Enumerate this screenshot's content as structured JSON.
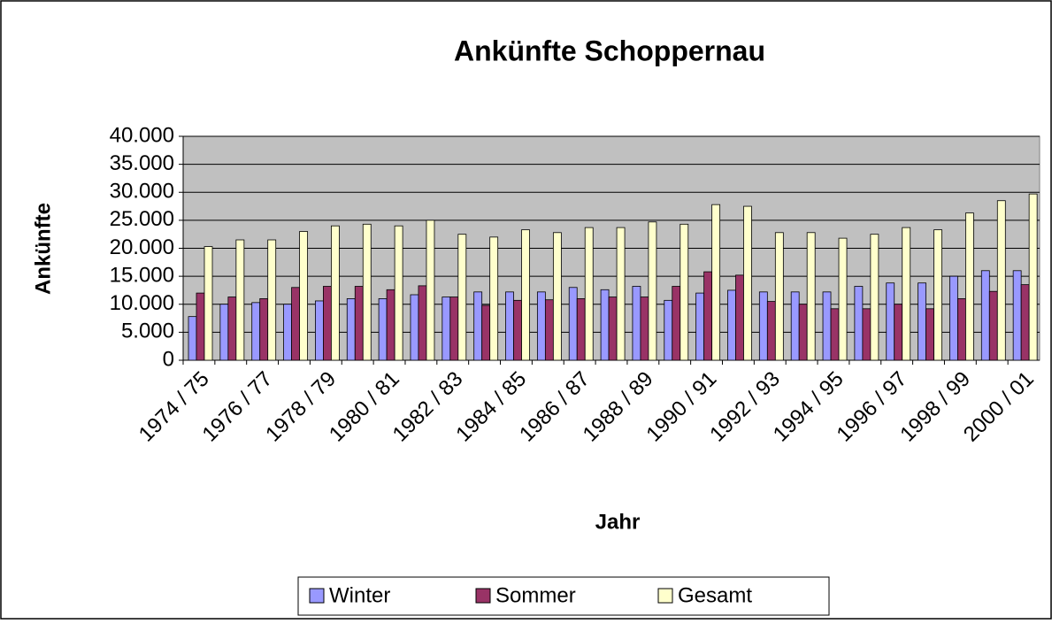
{
  "chart_data": {
    "type": "bar",
    "title": "Ankünfte Schoppernau",
    "x_label": "Jahr",
    "y_label": "Ankünfte",
    "categories": [
      "1974 / 75",
      null,
      "1976 / 77",
      null,
      "1978 / 79",
      null,
      "1980 / 81",
      null,
      "1982 / 83",
      null,
      "1984 / 85",
      null,
      "1986 / 87",
      null,
      "1988 / 89",
      null,
      "1990 / 91",
      null,
      "1992 / 93",
      null,
      "1994 / 95",
      null,
      "1996 / 97",
      null,
      "1998 / 99",
      null,
      "2000 / 01"
    ],
    "series": [
      {
        "name": "Winter",
        "color": "#9999ff",
        "values": [
          7800,
          10000,
          10300,
          10000,
          10600,
          11000,
          11000,
          11700,
          11300,
          12200,
          12200,
          12200,
          13000,
          12600,
          13200,
          10700,
          12000,
          12500,
          12200,
          12200,
          12200,
          13200,
          13800,
          13800,
          15000,
          16000,
          16000
        ]
      },
      {
        "name": "Sommer",
        "color": "#993366",
        "values": [
          12000,
          11300,
          11000,
          13000,
          13200,
          13200,
          12600,
          13300,
          11300,
          9800,
          10700,
          10800,
          11000,
          11300,
          11300,
          13200,
          15800,
          15200,
          10500,
          10000,
          9200,
          9200,
          10000,
          9200,
          11000,
          12300,
          13500
        ]
      },
      {
        "name": "Gesamt",
        "color": "#ffffcc",
        "values": [
          20300,
          21500,
          21500,
          23000,
          24000,
          24300,
          24000,
          25000,
          22500,
          22000,
          23300,
          22800,
          23700,
          23700,
          24700,
          24300,
          27800,
          27500,
          22800,
          22800,
          21800,
          22500,
          23700,
          23300,
          26300,
          28500,
          29700
        ]
      }
    ],
    "ylim": [
      0,
      40000
    ],
    "yticks": [
      0,
      {
        "value": 5000,
        "label": "5.000"
      },
      {
        "value": 10000,
        "label": "10.000"
      },
      {
        "value": 15000,
        "label": "15.000"
      },
      {
        "value": 20000,
        "label": "20.000"
      },
      {
        "value": 25000,
        "label": "25.000"
      },
      {
        "value": 30000,
        "label": "30.000"
      },
      {
        "value": 35000,
        "label": "35.000"
      },
      {
        "value": 40000,
        "label": "40.000"
      }
    ],
    "grid": true,
    "legend": "bottom",
    "plot_background": "#c0c0c0"
  }
}
